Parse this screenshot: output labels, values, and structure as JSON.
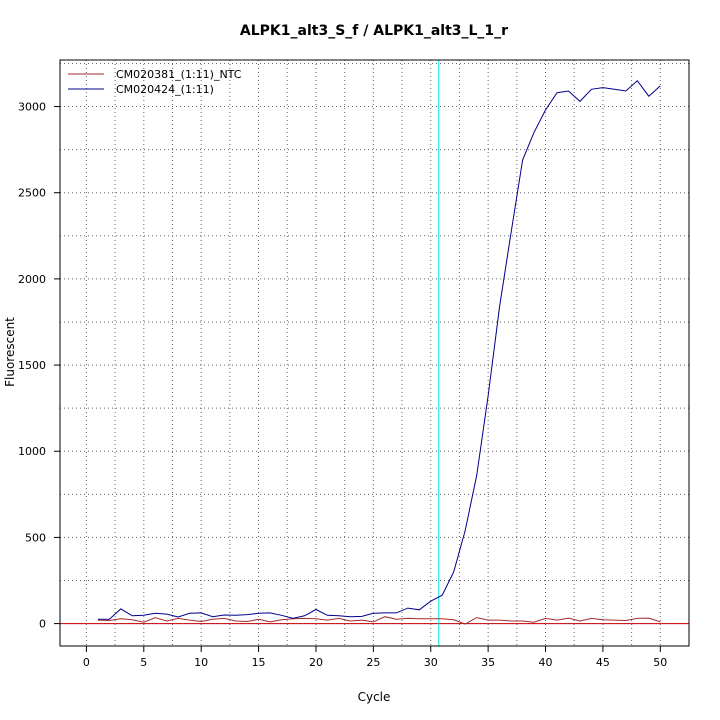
{
  "chart_data": {
    "type": "line",
    "title": "ALPK1_alt3_S_f / ALPK1_alt3_L_1_r",
    "xlabel": "Cycle",
    "ylabel": "Fluorescent",
    "xlim": [
      -2.3,
      52.5
    ],
    "ylim": [
      -130,
      3270
    ],
    "xticks": [
      0,
      5,
      10,
      15,
      20,
      25,
      30,
      35,
      40,
      45,
      50
    ],
    "xtick_labels": [
      "0",
      "5",
      "10",
      "15",
      "20",
      "25",
      "30",
      "35",
      "40",
      "45",
      "50"
    ],
    "yticks": [
      0,
      500,
      1000,
      1500,
      2000,
      2500,
      3000
    ],
    "ytick_labels": [
      "0",
      "500",
      "1000",
      "1500",
      "2000",
      "2500",
      "3000"
    ],
    "grid": true,
    "legend_position": "top-left",
    "threshold_cycle": 30.7,
    "threshold_color": "#00e5e5",
    "baseline_color": "#cc0000",
    "series": [
      {
        "name": "CM020381_(1:11)_NTC",
        "color": "#a52a2a",
        "x": [
          1,
          2,
          3,
          4,
          5,
          6,
          7,
          8,
          9,
          10,
          11,
          12,
          13,
          14,
          15,
          16,
          17,
          18,
          19,
          20,
          21,
          22,
          23,
          24,
          25,
          26,
          27,
          28,
          29,
          30,
          31,
          32,
          33,
          34,
          35,
          36,
          37,
          38,
          39,
          40,
          41,
          42,
          43,
          44,
          45,
          46,
          47,
          48,
          49,
          50
        ],
        "y": [
          20,
          18,
          28,
          22,
          8,
          35,
          15,
          30,
          20,
          12,
          25,
          30,
          15,
          12,
          25,
          10,
          22,
          28,
          30,
          28,
          20,
          30,
          15,
          20,
          10,
          40,
          25,
          30,
          28,
          28,
          28,
          22,
          -3,
          35,
          20,
          20,
          15,
          15,
          8,
          30,
          20,
          32,
          15,
          30,
          22,
          20,
          18,
          30,
          32,
          10
        ]
      },
      {
        "name": "CM020424_(1:11)",
        "color": "#00008b",
        "x": [
          1,
          2,
          3,
          4,
          5,
          6,
          7,
          8,
          9,
          10,
          11,
          12,
          13,
          14,
          15,
          16,
          17,
          18,
          19,
          20,
          21,
          22,
          23,
          24,
          25,
          26,
          27,
          28,
          29,
          30,
          31,
          32,
          33,
          34,
          35,
          36,
          37,
          38,
          39,
          40,
          41,
          42,
          43,
          44,
          45,
          46,
          47,
          48,
          49,
          50
        ],
        "y": [
          25,
          25,
          85,
          45,
          48,
          60,
          55,
          38,
          60,
          62,
          40,
          50,
          48,
          52,
          60,
          62,
          48,
          30,
          45,
          82,
          48,
          45,
          40,
          42,
          60,
          62,
          62,
          90,
          80,
          130,
          165,
          300,
          540,
          860,
          1320,
          1840,
          2270,
          2690,
          2850,
          2980,
          3080,
          3090,
          3030,
          3100,
          3110,
          3100,
          3090,
          3150,
          3060,
          3120
        ]
      }
    ]
  }
}
